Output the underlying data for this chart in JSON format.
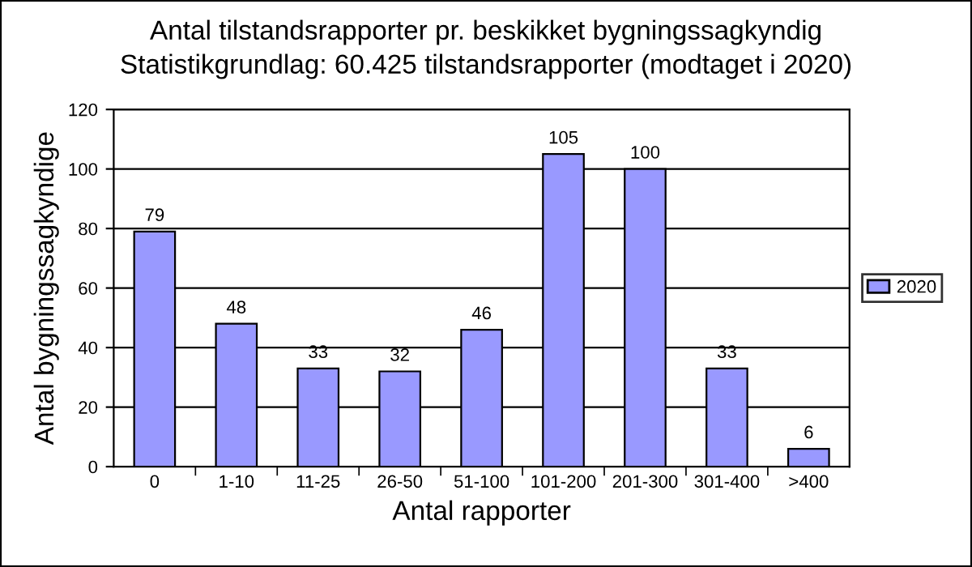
{
  "chart_data": {
    "type": "bar",
    "title": "Antal tilstandsrapporter pr. beskikket bygningssagkyndig",
    "subtitle": "Statistikgrundlag: 60.425 tilstandsrapporter (modtaget i 2020)",
    "xlabel": "Antal rapporter",
    "ylabel": "Antal bygningssagkyndige",
    "categories": [
      "0",
      "1-10",
      "11-25",
      "26-50",
      "51-100",
      "101-200",
      "201-300",
      "301-400",
      ">400"
    ],
    "series": [
      {
        "name": "2020",
        "color": "#9999ff",
        "values": [
          79,
          48,
          33,
          32,
          46,
          105,
          100,
          33,
          6
        ]
      }
    ],
    "ylim": [
      0,
      120
    ],
    "yticks": [
      0,
      20,
      40,
      60,
      80,
      100,
      120
    ],
    "grid": "y",
    "legend": "right",
    "data_labels": true
  }
}
